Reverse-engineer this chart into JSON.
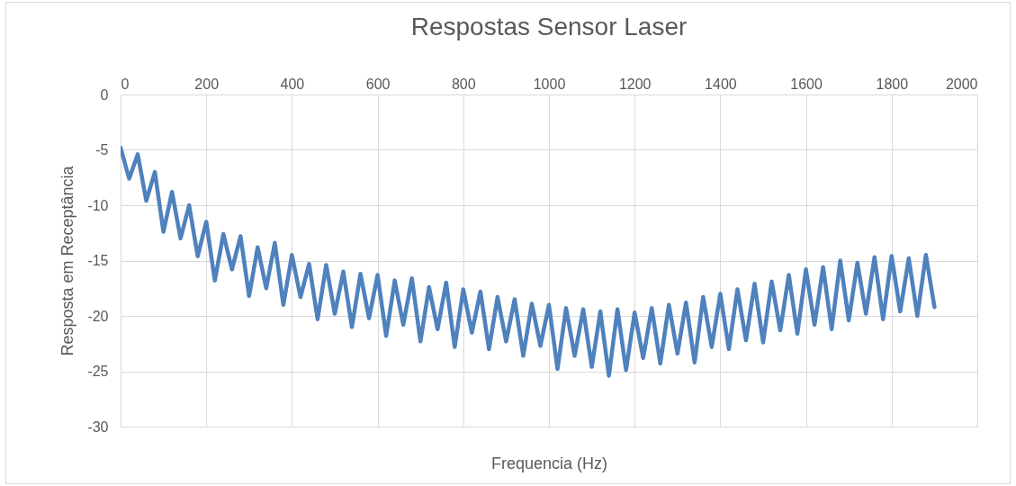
{
  "chart_data": {
    "type": "line",
    "title": "Respostas Sensor Laser",
    "xlabel": "Frequencia (Hz)",
    "ylabel": "Resposta em Receptância",
    "xlim": [
      0,
      2000
    ],
    "xticks": [
      0,
      200,
      400,
      600,
      800,
      1000,
      1200,
      1400,
      1600,
      1800,
      2000
    ],
    "ylim": [
      -30,
      0
    ],
    "yticks": [
      -30,
      -25,
      -20,
      -15,
      -10,
      -5,
      0
    ],
    "grid": true,
    "series": [
      {
        "color": "#4f81bd",
        "x": [
          0,
          20,
          40,
          60,
          80,
          100,
          120,
          140,
          160,
          180,
          200,
          220,
          240,
          260,
          280,
          300,
          320,
          340,
          360,
          380,
          400,
          420,
          440,
          460,
          480,
          500,
          520,
          540,
          560,
          580,
          600,
          620,
          640,
          660,
          680,
          700,
          720,
          740,
          760,
          780,
          800,
          820,
          840,
          860,
          880,
          900,
          920,
          940,
          960,
          980,
          1000,
          1020,
          1040,
          1060,
          1080,
          1100,
          1120,
          1140,
          1160,
          1180,
          1200,
          1220,
          1240,
          1260,
          1280,
          1300,
          1320,
          1340,
          1360,
          1380,
          1400,
          1420,
          1440,
          1460,
          1480,
          1500,
          1520,
          1540,
          1560,
          1580,
          1600,
          1620,
          1640,
          1660,
          1680,
          1700,
          1720,
          1740,
          1760,
          1780,
          1800,
          1820,
          1840,
          1860,
          1880,
          1900
        ],
        "values": [
          -4.8,
          -7.6,
          -5.4,
          -9.6,
          -7.0,
          -12.4,
          -8.8,
          -13.0,
          -10.0,
          -14.6,
          -11.5,
          -16.8,
          -12.6,
          -15.8,
          -12.8,
          -18.2,
          -13.8,
          -17.5,
          -13.4,
          -19.0,
          -14.5,
          -18.3,
          -15.3,
          -20.3,
          -15.4,
          -19.8,
          -16.0,
          -21.0,
          -16.2,
          -20.2,
          -16.3,
          -21.8,
          -16.8,
          -20.8,
          -16.6,
          -22.3,
          -17.4,
          -21.2,
          -17.0,
          -22.8,
          -17.6,
          -21.5,
          -17.8,
          -23.0,
          -18.3,
          -22.3,
          -18.5,
          -23.6,
          -18.9,
          -22.7,
          -19.0,
          -24.8,
          -19.3,
          -23.6,
          -19.4,
          -24.6,
          -19.6,
          -25.4,
          -19.4,
          -24.9,
          -19.7,
          -23.8,
          -19.3,
          -24.3,
          -19.0,
          -23.4,
          -18.8,
          -24.2,
          -18.3,
          -22.8,
          -18.0,
          -23.0,
          -17.6,
          -22.2,
          -17.1,
          -22.4,
          -16.9,
          -21.3,
          -16.3,
          -21.6,
          -15.8,
          -20.8,
          -15.6,
          -21.2,
          -15.0,
          -20.4,
          -15.2,
          -19.8,
          -14.7,
          -20.3,
          -14.6,
          -19.6,
          -14.8,
          -20.0,
          -14.5,
          -19.2
        ]
      }
    ]
  }
}
